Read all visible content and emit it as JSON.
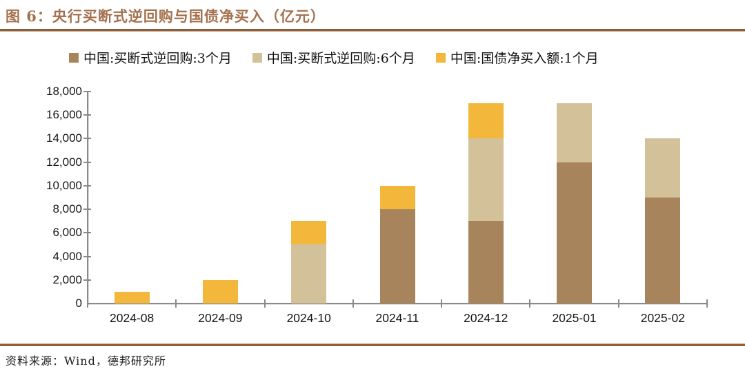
{
  "header": {
    "title": "图 6：央行买断式逆回购与国债净买入（亿元）"
  },
  "footer": {
    "source": "资料来源：Wind，德邦研究所"
  },
  "colors": {
    "title_brown": "#A3714E",
    "rule_top": "#8C5E3B",
    "rule_bottom": "#975F33",
    "axis_gray": "#8A8A8A",
    "series_3m_brown": "#A8845C",
    "series_6m_tan": "#D2C199",
    "series_bond_yellow": "#F3B73C"
  },
  "chart_data": {
    "type": "bar",
    "stacked": true,
    "grid": false,
    "legend_position": "top",
    "unit": "亿元",
    "categories": [
      "2024-08",
      "2024-09",
      "2024-10",
      "2024-11",
      "2024-12",
      "2025-01",
      "2025-02"
    ],
    "series": [
      {
        "name": "中国:买断式逆回购:3个月",
        "color": "#A8845C",
        "values": [
          0,
          0,
          0,
          8000,
          7000,
          12000,
          9000
        ]
      },
      {
        "name": "中国:买断式逆回购:6个月",
        "color": "#D2C199",
        "values": [
          0,
          0,
          5000,
          0,
          7000,
          5000,
          5000
        ]
      },
      {
        "name": "中国:国债净买入额:1个月",
        "color": "#F3B73C",
        "values": [
          1000,
          2000,
          2000,
          2000,
          3000,
          0,
          0
        ]
      }
    ],
    "totals": [
      1000,
      2000,
      7000,
      10000,
      17000,
      17000,
      14000
    ],
    "ylim": [
      0,
      18000
    ],
    "ytick_step": 2000,
    "ytick_labels": [
      "0",
      "2,000",
      "4,000",
      "6,000",
      "8,000",
      "10,000",
      "12,000",
      "14,000",
      "16,000",
      "18,000"
    ],
    "xlabel": "",
    "ylabel": ""
  }
}
